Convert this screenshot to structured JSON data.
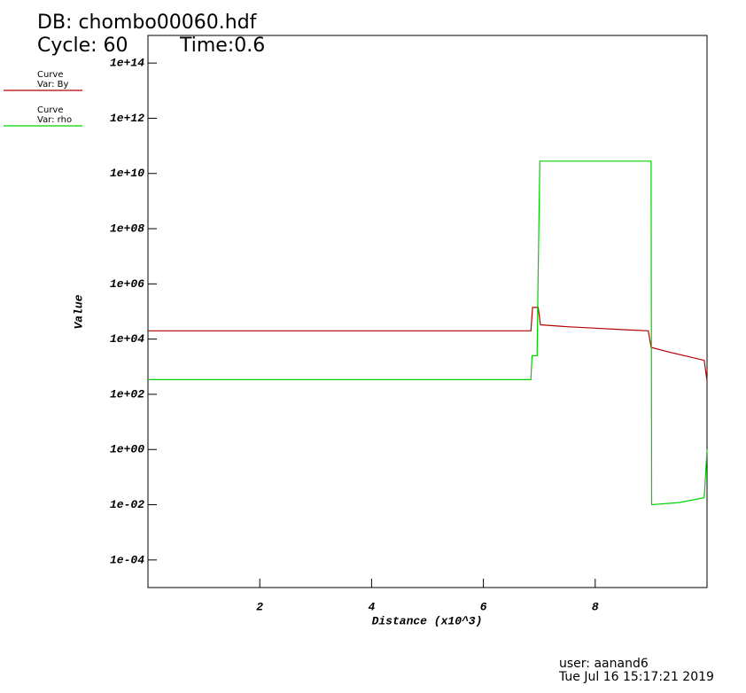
{
  "chart_data": {
    "type": "line",
    "title": "DB: chombo00060.hdf",
    "cycle": "Cycle: 60",
    "time": "Time:0.6",
    "xlabel": "Distance (x10^3)",
    "ylabel": "Value",
    "log_y": true,
    "xlim": [
      0,
      10
    ],
    "ylim": [
      1e-05,
      1000000000000000.0
    ],
    "xticks": [
      2,
      4,
      6,
      8
    ],
    "yticks": [
      {
        "value": 0.0001,
        "label": "1e-04"
      },
      {
        "value": 0.01,
        "label": "1e-02"
      },
      {
        "value": 1,
        "label": "1e+00"
      },
      {
        "value": 100,
        "label": "1e+02"
      },
      {
        "value": 10000,
        "label": "1e+04"
      },
      {
        "value": 1000000,
        "label": "1e+06"
      },
      {
        "value": 100000000,
        "label": "1e+08"
      },
      {
        "value": 10000000000,
        "label": "1e+10"
      },
      {
        "value": 1000000000000,
        "label": "1e+12"
      },
      {
        "value": 100000000000000,
        "label": "1e+14"
      }
    ],
    "series": [
      {
        "label": "Curve",
        "name": "Var: By",
        "color": "#b40000",
        "x": [
          0,
          6.85,
          6.88,
          6.98,
          7.02,
          7.5,
          8.0,
          8.5,
          8.95,
          9.0,
          9.3,
          9.6,
          9.95,
          10
        ],
        "values": [
          20000,
          20000,
          140000,
          140000,
          33000,
          28000,
          25000,
          22000,
          20000,
          5000,
          3500,
          2500,
          1700,
          300
        ]
      },
      {
        "label": "Curve",
        "name": "Var: rho",
        "color": "#00d200",
        "x": [
          0,
          6.85,
          6.87,
          6.96,
          6.98,
          7.01,
          9.0,
          9.01,
          9.5,
          9.95,
          10
        ],
        "values": [
          340,
          340,
          2500,
          2500,
          2500000,
          28000000000,
          28000000000,
          0.01,
          0.012,
          0.018,
          1
        ]
      }
    ],
    "user": "user: aanand6",
    "date": "Tue Jul 16 15:17:21 2019"
  }
}
